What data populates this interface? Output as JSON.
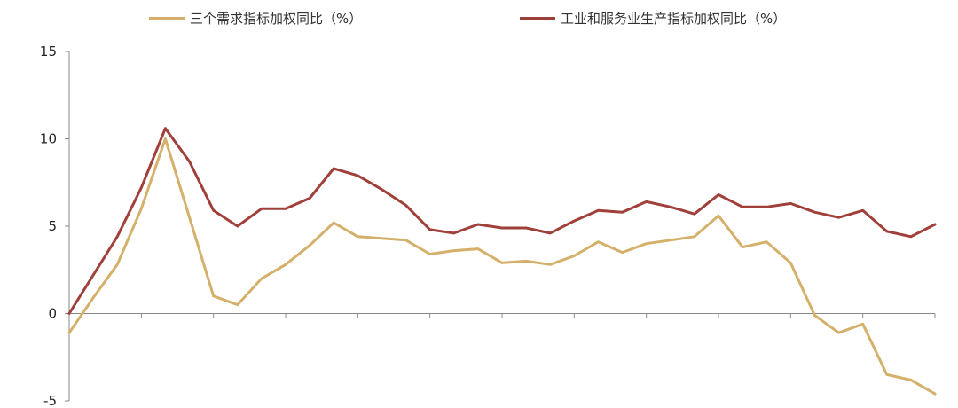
{
  "chart_data": {
    "type": "line",
    "title": "",
    "xlabel": "",
    "ylabel": "",
    "ylim": [
      -5,
      15
    ],
    "yticks": [
      -5,
      0,
      5,
      10,
      15
    ],
    "grid": false,
    "legend_position": "top",
    "x": [
      1,
      2,
      3,
      4,
      5,
      6,
      7,
      8,
      9,
      10,
      11,
      12,
      13,
      14,
      15,
      16,
      17,
      18,
      19,
      20,
      21,
      22,
      23,
      24,
      25,
      26,
      27,
      28,
      29,
      30,
      31,
      32,
      33,
      34,
      35,
      36,
      37
    ],
    "series": [
      {
        "name": "三个需求指标加权同比（%）",
        "color": "#d4b06a",
        "values": [
          -1.1,
          0.9,
          2.8,
          6.0,
          10.0,
          5.5,
          1.0,
          0.5,
          2.0,
          2.8,
          3.9,
          5.2,
          4.4,
          4.3,
          4.2,
          3.4,
          3.6,
          3.7,
          2.9,
          3.0,
          2.8,
          3.3,
          4.1,
          3.5,
          4.0,
          4.2,
          4.4,
          5.6,
          3.8,
          4.1,
          2.9,
          -0.1,
          -1.1,
          -0.6,
          -3.5,
          -3.8,
          -4.6
        ]
      },
      {
        "name": "工业和服务业生产指标加权同比（%）",
        "color": "#a0403a",
        "values": [
          0.0,
          2.2,
          4.4,
          7.2,
          10.6,
          8.7,
          5.9,
          5.0,
          6.0,
          6.0,
          6.6,
          8.3,
          7.9,
          7.1,
          6.2,
          4.8,
          4.6,
          5.1,
          4.9,
          4.9,
          4.6,
          5.3,
          5.9,
          5.8,
          6.4,
          6.1,
          5.7,
          6.8,
          6.1,
          6.1,
          6.3,
          5.8,
          5.5,
          5.9,
          4.7,
          4.4,
          5.1
        ]
      }
    ]
  }
}
